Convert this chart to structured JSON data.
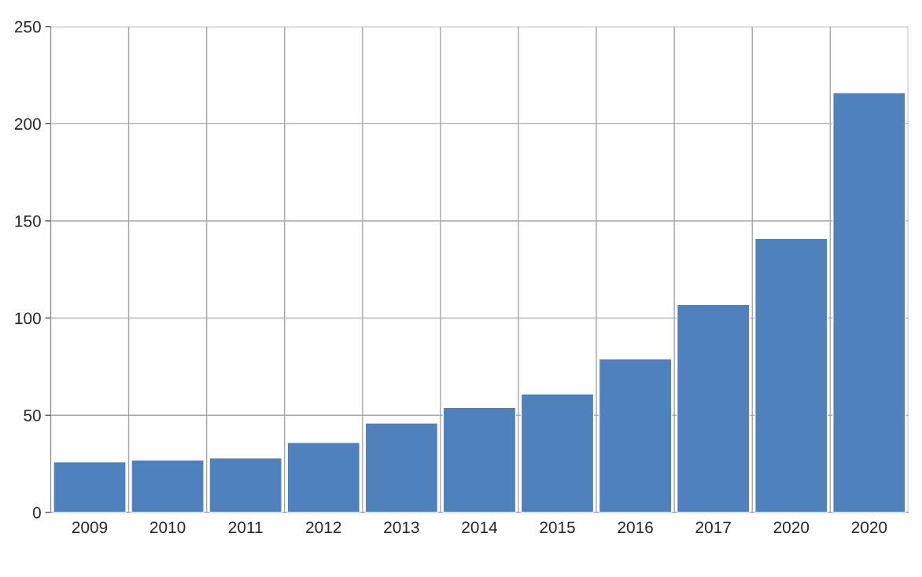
{
  "chart_data": {
    "type": "bar",
    "categories": [
      "2009",
      "2010",
      "2011",
      "2012",
      "2013",
      "2014",
      "2015",
      "2016",
      "2017",
      "2020",
      "2020"
    ],
    "values": [
      26,
      27,
      28,
      36,
      46,
      54,
      61,
      79,
      107,
      141,
      216
    ],
    "color": "#4f81bd",
    "ylim": [
      0,
      250
    ],
    "yticks": [
      0,
      50,
      100,
      150,
      200,
      250
    ],
    "grid": true,
    "legend": false
  }
}
